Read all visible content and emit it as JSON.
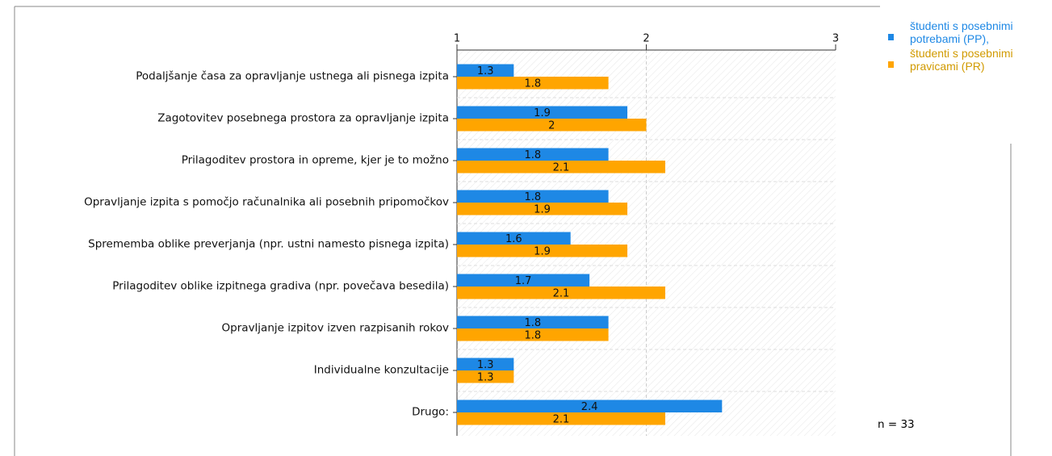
{
  "chart_data": {
    "type": "bar",
    "orientation": "horizontal",
    "categories": [
      "Podaljšanje časa za opravljanje ustnega ali pisnega izpita",
      "Zagotovitev posebnega prostora za opravljanje izpita",
      "Prilagoditev prostora in opreme, kjer je to možno",
      "Opravljanje izpita s pomočjo računalnika ali posebnih pripomočkov",
      "Sprememba oblike preverjanja (npr. ustni namesto pisnega izpita)",
      "Prilagoditev oblike izpitnega gradiva (npr. povečava besedila)",
      "Opravljanje izpitov izven razpisanih rokov",
      "Individualne konzultacije",
      "Drugo:"
    ],
    "series": [
      {
        "name": "študenti s posebnimi potrebami (PP),",
        "color": "#1e88e5",
        "values": [
          1.3,
          1.9,
          1.8,
          1.8,
          1.6,
          1.7,
          1.8,
          1.3,
          2.4
        ]
      },
      {
        "name": "študenti s posebnimi pravicami (PR)",
        "color": "#ffa500",
        "values": [
          1.8,
          2,
          2.1,
          1.9,
          1.9,
          2.1,
          1.8,
          1.3,
          2.1
        ]
      }
    ],
    "xlim": [
      1,
      3
    ],
    "xticks": [
      1,
      2,
      3
    ],
    "grid": true,
    "annotation": "n = 33"
  }
}
